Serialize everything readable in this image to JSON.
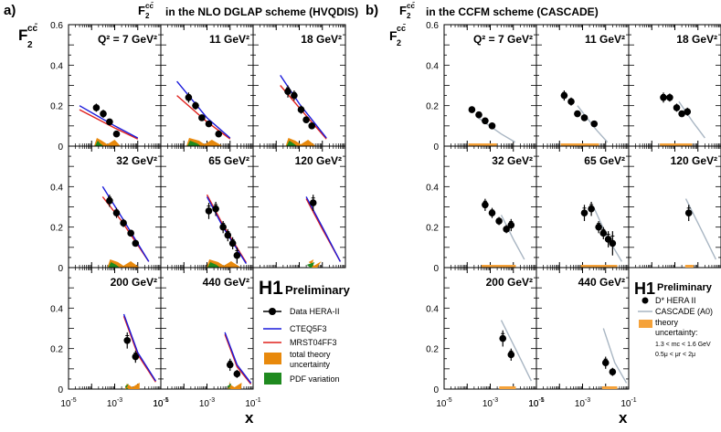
{
  "figure": {
    "title_a": "in the NLO DGLAP scheme (HVQDIS)",
    "title_b": "in the CCFM scheme (CASCADE)",
    "panel_letter_a": "a)",
    "panel_letter_b": "b)",
    "f2_main": "F",
    "f2_sub": "2",
    "f2_sup": "cc̄",
    "xlabel": "x",
    "h1_logo": "H1",
    "preliminary_label": "Preliminary"
  },
  "legend_a": {
    "items": [
      {
        "label": "Data HERA-II",
        "kind": "data"
      },
      {
        "label": "CTEQ5F3",
        "kind": "line",
        "color": "#1a1adb"
      },
      {
        "label": "MRST04FF3",
        "kind": "line",
        "color": "#e0201c"
      },
      {
        "label": "total theory uncertainty",
        "kind": "band",
        "color": "#e8890c"
      },
      {
        "label": "PDF variation",
        "kind": "band",
        "color": "#1f8a1f"
      }
    ]
  },
  "legend_b": {
    "items": [
      {
        "label": "D* HERA II",
        "kind": "data"
      },
      {
        "label": "CASCADE (A0)",
        "kind": "line",
        "color": "#a9b6c3"
      },
      {
        "label": "theory uncertainty:",
        "kind": "band",
        "color": "#f5a23a"
      }
    ],
    "notes": [
      "1.3 < mc < 1.6 GeV",
      "0.5μ < μr < 2μ"
    ]
  },
  "axes": {
    "y_ticks": [
      "0",
      "0.2",
      "0.4",
      "0.6"
    ],
    "x_ticks": [
      "10-5",
      "10-3",
      "10-1"
    ],
    "xscale": "log",
    "xlim": [
      1e-05,
      0.1
    ],
    "ylim": [
      0,
      0.6
    ]
  },
  "chart_data": {
    "type": "scatter",
    "xlabel": "x",
    "ylabel": "F2cc̄",
    "xscale": "log",
    "ylim": [
      0,
      0.6
    ],
    "bins": [
      {
        "q2": "Q² = 7 GeV²",
        "x": [
          0.00016,
          0.00032,
          0.0006,
          0.0012
        ],
        "y": [
          0.19,
          0.16,
          0.12,
          0.06
        ],
        "err": [
          0.02,
          0.02,
          0.015,
          0.01
        ],
        "casc_x": [
          0.00016,
          0.00032,
          0.0006,
          0.0012
        ],
        "casc_y": [
          0.18,
          0.155,
          0.125,
          0.1
        ],
        "casc_err": [
          0.015,
          0.015,
          0.012,
          0.01
        ],
        "cteq": [
          [
            3e-05,
            0.2
          ],
          [
            0.001,
            0.1
          ],
          [
            0.01,
            0.04
          ]
        ],
        "mrst": [
          [
            3e-05,
            0.18
          ],
          [
            0.001,
            0.09
          ],
          [
            0.01,
            0.035
          ]
        ],
        "casc_line": [
          [
            0.0003,
            0.14
          ],
          [
            0.003,
            0.06
          ],
          [
            0.012,
            0.02
          ]
        ]
      },
      {
        "q2": "11 GeV²",
        "x": [
          0.00016,
          0.00032,
          0.0006,
          0.0012,
          0.0032
        ],
        "y": [
          0.24,
          0.2,
          0.14,
          0.11,
          0.06
        ],
        "err": [
          0.025,
          0.02,
          0.015,
          0.012,
          0.008
        ],
        "casc_x": [
          0.00016,
          0.00032,
          0.0006,
          0.0012,
          0.0032
        ],
        "casc_y": [
          0.25,
          0.22,
          0.16,
          0.14,
          0.11
        ],
        "casc_err": [
          0.025,
          0.02,
          0.015,
          0.012,
          0.01
        ],
        "cteq": [
          [
            5e-05,
            0.32
          ],
          [
            0.001,
            0.14
          ],
          [
            0.01,
            0.04
          ]
        ],
        "mrst": [
          [
            5e-05,
            0.25
          ],
          [
            0.001,
            0.12
          ],
          [
            0.01,
            0.035
          ]
        ],
        "casc_line": [
          [
            0.0006,
            0.2
          ],
          [
            0.004,
            0.08
          ],
          [
            0.012,
            0.02
          ]
        ]
      },
      {
        "q2": "18 GeV²",
        "x": [
          0.00032,
          0.0006,
          0.0012,
          0.002,
          0.0035
        ],
        "y": [
          0.27,
          0.25,
          0.18,
          0.13,
          0.1
        ],
        "err": [
          0.03,
          0.025,
          0.02,
          0.015,
          0.012
        ],
        "casc_x": [
          0.00032,
          0.0006,
          0.0012,
          0.002,
          0.0035
        ],
        "casc_y": [
          0.24,
          0.24,
          0.19,
          0.16,
          0.17
        ],
        "casc_err": [
          0.025,
          0.02,
          0.02,
          0.015,
          0.02
        ],
        "cteq": [
          [
            0.00015,
            0.35
          ],
          [
            0.001,
            0.21
          ],
          [
            0.015,
            0.04
          ]
        ],
        "mrst": [
          [
            0.00015,
            0.3
          ],
          [
            0.001,
            0.19
          ],
          [
            0.015,
            0.035
          ]
        ],
        "casc_line": [
          [
            0.0015,
            0.22
          ],
          [
            0.006,
            0.12
          ],
          [
            0.02,
            0.04
          ]
        ]
      },
      {
        "q2": "32 GeV²",
        "x": [
          0.0006,
          0.0012,
          0.0024,
          0.005,
          0.008
        ],
        "y": [
          0.33,
          0.27,
          0.22,
          0.17,
          0.12
        ],
        "err": [
          0.03,
          0.025,
          0.02,
          0.015,
          0.012
        ],
        "casc_x": [
          0.0006,
          0.0012,
          0.0024,
          0.005,
          0.008
        ],
        "casc_y": [
          0.31,
          0.27,
          0.23,
          0.19,
          0.21
        ],
        "casc_err": [
          0.03,
          0.025,
          0.02,
          0.02,
          0.03
        ],
        "cteq": [
          [
            0.0003,
            0.4
          ],
          [
            0.002,
            0.25
          ],
          [
            0.03,
            0.03
          ]
        ],
        "mrst": [
          [
            0.0003,
            0.35
          ],
          [
            0.002,
            0.23
          ],
          [
            0.03,
            0.03
          ]
        ],
        "casc_line": [
          [
            0.003,
            0.26
          ],
          [
            0.01,
            0.14
          ],
          [
            0.03,
            0.04
          ]
        ]
      },
      {
        "q2": "65 GeV²",
        "x": [
          0.0012,
          0.0024,
          0.005,
          0.008,
          0.013,
          0.02
        ],
        "y": [
          0.28,
          0.29,
          0.2,
          0.16,
          0.12,
          0.06
        ],
        "err": [
          0.04,
          0.035,
          0.03,
          0.03,
          0.03,
          0.04
        ],
        "casc_x": [
          0.0012,
          0.0024,
          0.005,
          0.008,
          0.013,
          0.02
        ],
        "casc_y": [
          0.27,
          0.29,
          0.2,
          0.17,
          0.14,
          0.12
        ],
        "casc_err": [
          0.04,
          0.035,
          0.03,
          0.03,
          0.04,
          0.06
        ],
        "cteq": [
          [
            0.001,
            0.35
          ],
          [
            0.005,
            0.2
          ],
          [
            0.05,
            0.02
          ]
        ],
        "mrst": [
          [
            0.001,
            0.36
          ],
          [
            0.005,
            0.21
          ],
          [
            0.05,
            0.025
          ]
        ],
        "casc_line": [
          [
            0.003,
            0.3
          ],
          [
            0.012,
            0.15
          ],
          [
            0.05,
            0.03
          ]
        ]
      },
      {
        "q2": "120 GeV²",
        "x": [
          0.004
        ],
        "y": [
          0.32
        ],
        "err": [
          0.04
        ],
        "casc_x": [
          0.004
        ],
        "casc_y": [
          0.27
        ],
        "casc_err": [
          0.04
        ],
        "cteq": [
          [
            0.002,
            0.35
          ],
          [
            0.01,
            0.2
          ],
          [
            0.06,
            0.03
          ]
        ],
        "mrst": [
          [
            0.002,
            0.34
          ],
          [
            0.01,
            0.19
          ],
          [
            0.06,
            0.03
          ]
        ],
        "casc_line": [
          [
            0.003,
            0.34
          ],
          [
            0.015,
            0.18
          ],
          [
            0.06,
            0.04
          ]
        ]
      },
      {
        "q2": "200 GeV²",
        "x": [
          0.0035,
          0.008
        ],
        "y": [
          0.24,
          0.16
        ],
        "err": [
          0.04,
          0.03
        ],
        "casc_x": [
          0.0035,
          0.008
        ],
        "casc_y": [
          0.25,
          0.17
        ],
        "casc_err": [
          0.04,
          0.03
        ],
        "cteq": [
          [
            0.0025,
            0.37
          ],
          [
            0.01,
            0.18
          ],
          [
            0.06,
            0.04
          ]
        ],
        "mrst": [
          [
            0.0025,
            0.36
          ],
          [
            0.01,
            0.17
          ],
          [
            0.06,
            0.035
          ]
        ],
        "casc_line": [
          [
            0.003,
            0.34
          ],
          [
            0.015,
            0.18
          ],
          [
            0.06,
            0.04
          ]
        ]
      },
      {
        "q2": "440 GeV²",
        "x": [
          0.01,
          0.02
        ],
        "y": [
          0.12,
          0.075
        ],
        "err": [
          0.03,
          0.02
        ],
        "casc_x": [
          0.01,
          0.02
        ],
        "casc_y": [
          0.13,
          0.085
        ],
        "casc_err": [
          0.03,
          0.02
        ],
        "cteq": [
          [
            0.006,
            0.28
          ],
          [
            0.02,
            0.12
          ],
          [
            0.08,
            0.03
          ]
        ],
        "mrst": [
          [
            0.006,
            0.27
          ],
          [
            0.02,
            0.11
          ],
          [
            0.08,
            0.025
          ]
        ],
        "casc_line": [
          [
            0.008,
            0.3
          ],
          [
            0.025,
            0.13
          ],
          [
            0.08,
            0.03
          ]
        ]
      }
    ]
  }
}
